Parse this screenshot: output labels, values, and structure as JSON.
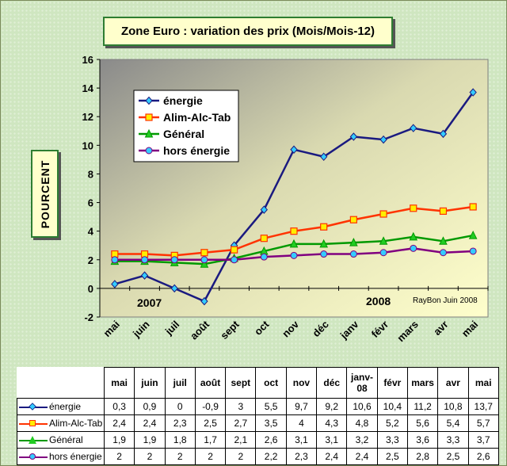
{
  "title": "Zone Euro : variation des prix (Mois/Mois-12)",
  "ylabel": "POURCENT",
  "annotations": {
    "year1": "2007",
    "year2": "2008",
    "credit": "RayBon Juin 2008"
  },
  "chart_data": {
    "type": "line",
    "title": "Zone Euro : variation des prix (Mois/Mois-12)",
    "xlabel": "",
    "ylabel": "POURCENT",
    "categories": [
      "mai",
      "juin",
      "juil",
      "août",
      "sept",
      "oct",
      "nov",
      "déc",
      "janv-08",
      "févr",
      "mars",
      "avr",
      "mai"
    ],
    "axis_categories": [
      "mai",
      "juin",
      "juil",
      "août",
      "sept",
      "oct",
      "nov",
      "déc",
      "janv",
      "févr",
      "mars",
      "avr",
      "mai"
    ],
    "ylim": [
      -2,
      16
    ],
    "yticks": [
      -2,
      0,
      2,
      4,
      6,
      8,
      10,
      12,
      14,
      16
    ],
    "grid": false,
    "legend": "top-left",
    "series": [
      {
        "name": "énergie",
        "color": "#1a1a80",
        "marker": "diamond",
        "marker_color": "#33ccff",
        "values": [
          0.3,
          0.9,
          0,
          -0.9,
          3,
          5.5,
          9.7,
          9.2,
          10.6,
          10.4,
          11.2,
          10.8,
          13.7
        ],
        "labels": [
          "0,3",
          "0,9",
          "0",
          "-0,9",
          "3",
          "5,5",
          "9,7",
          "9,2",
          "10,6",
          "10,4",
          "11,2",
          "10,8",
          "13,7"
        ]
      },
      {
        "name": "Alim-Alc-Tab",
        "color": "#ff3300",
        "marker": "square",
        "marker_color": "#ffee00",
        "values": [
          2.4,
          2.4,
          2.3,
          2.5,
          2.7,
          3.5,
          4,
          4.3,
          4.8,
          5.2,
          5.6,
          5.4,
          5.7
        ],
        "labels": [
          "2,4",
          "2,4",
          "2,3",
          "2,5",
          "2,7",
          "3,5",
          "4",
          "4,3",
          "4,8",
          "5,2",
          "5,6",
          "5,4",
          "5,7"
        ]
      },
      {
        "name": "Général",
        "color": "#009900",
        "marker": "triangle",
        "marker_color": "#22cc22",
        "values": [
          1.9,
          1.9,
          1.8,
          1.7,
          2.1,
          2.6,
          3.1,
          3.1,
          3.2,
          3.3,
          3.6,
          3.3,
          3.7
        ],
        "labels": [
          "1,9",
          "1,9",
          "1,8",
          "1,7",
          "2,1",
          "2,6",
          "3,1",
          "3,1",
          "3,2",
          "3,3",
          "3,6",
          "3,3",
          "3,7"
        ]
      },
      {
        "name": "hors énergie",
        "color": "#800080",
        "marker": "circle",
        "marker_color": "#33ccff",
        "values": [
          2,
          2,
          2,
          2,
          2,
          2.2,
          2.3,
          2.4,
          2.4,
          2.5,
          2.8,
          2.5,
          2.6
        ],
        "labels": [
          "2",
          "2",
          "2",
          "2",
          "2",
          "2,2",
          "2,3",
          "2,4",
          "2,4",
          "2,5",
          "2,8",
          "2,5",
          "2,6"
        ]
      }
    ]
  }
}
